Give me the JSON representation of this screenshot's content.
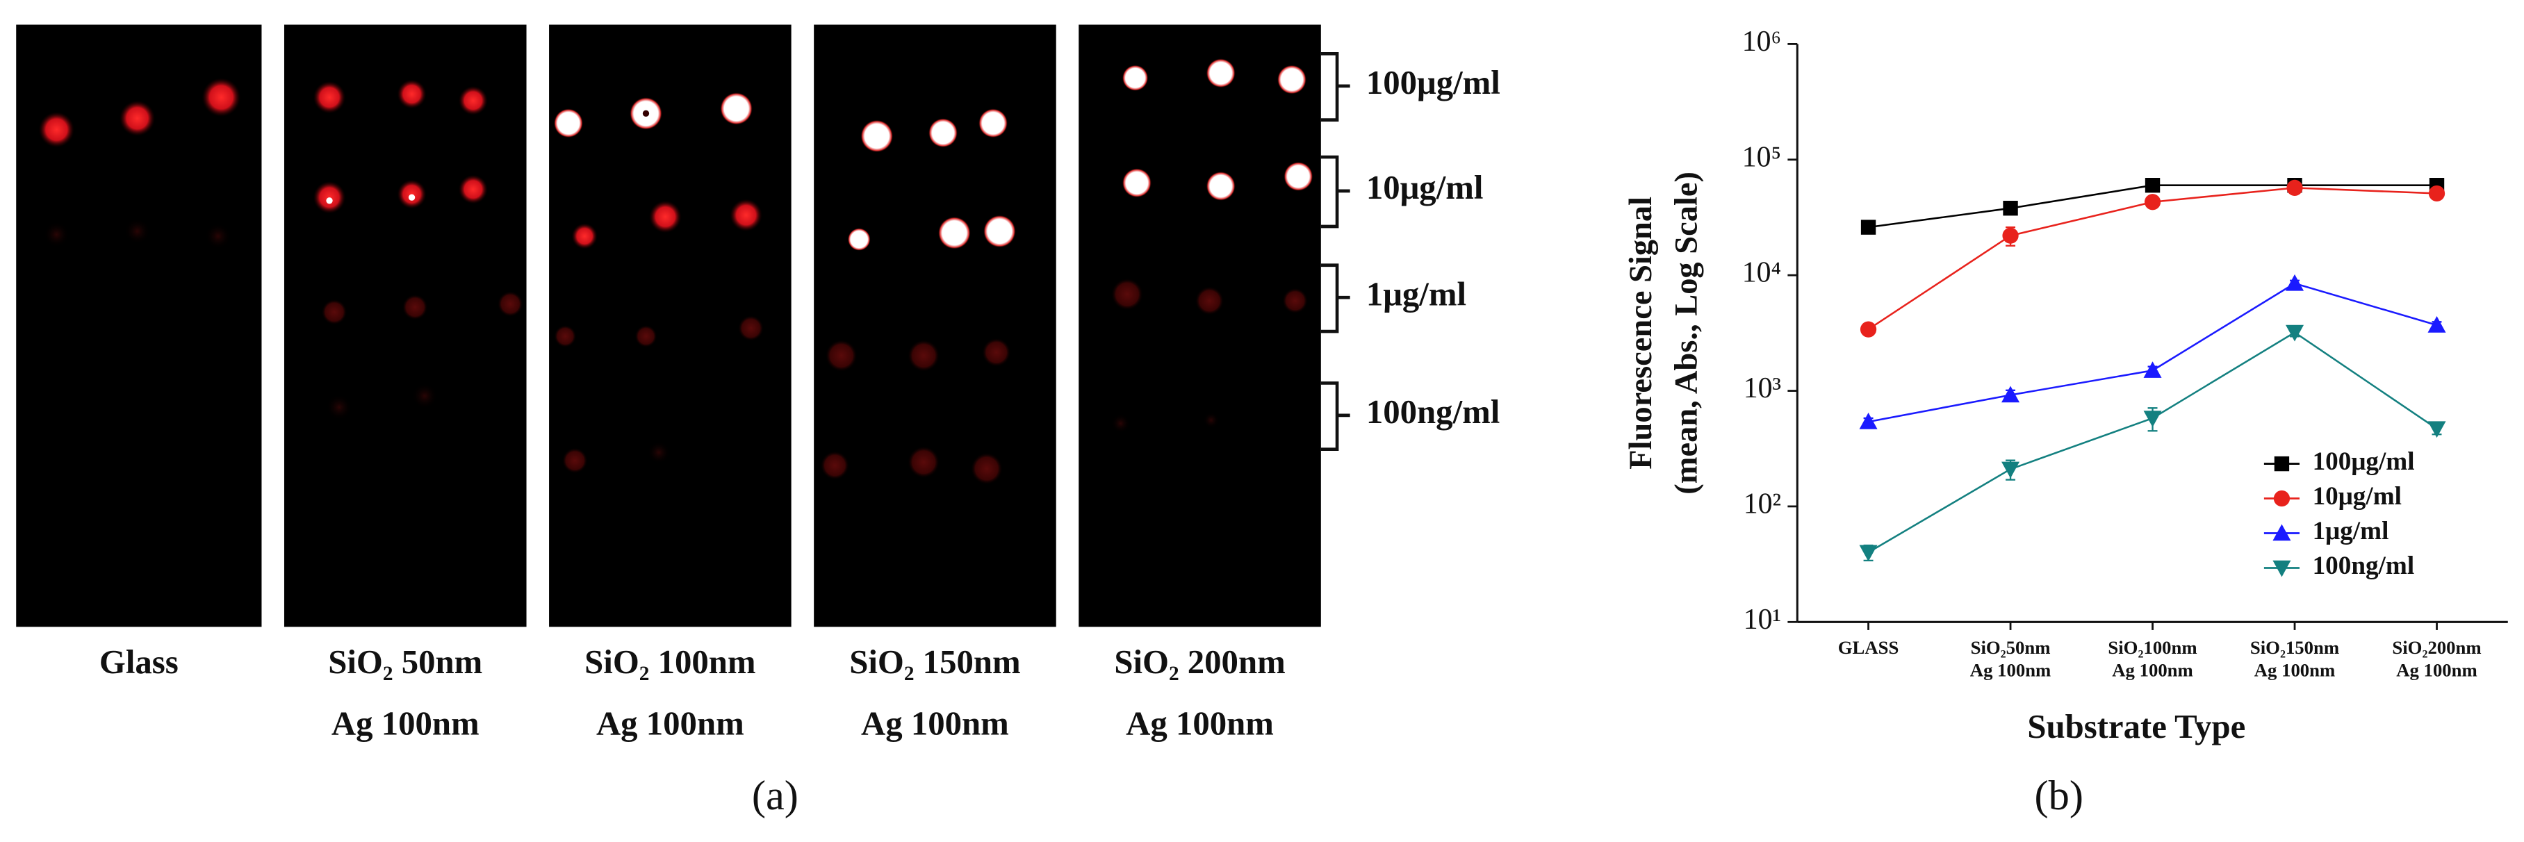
{
  "panel_a": {
    "label": "(a)",
    "substrates": [
      [
        "Glass"
      ],
      [
        "SiO₂ 50nm",
        "Ag 100nm"
      ],
      [
        "SiO₂ 100nm",
        "Ag 100nm"
      ],
      [
        "SiO₂ 150nm",
        "Ag 100nm"
      ],
      [
        "SiO₂ 200nm",
        "Ag 100nm"
      ]
    ],
    "concentrations": [
      "100μg/ml",
      "10μg/ml",
      "1μg/ml",
      "100ng/ml"
    ]
  },
  "chart_data": {
    "type": "line",
    "panel_label": "(b)",
    "xlabel": "Substrate Type",
    "ylabel": [
      "Fluorescence Signal",
      "(mean, Abs., Log Scale)"
    ],
    "categories": [
      [
        "GLASS"
      ],
      [
        "SiO₂50nm",
        "Ag 100nm"
      ],
      [
        "SiO₂100nm",
        "Ag 100nm"
      ],
      [
        "SiO₂150nm",
        "Ag 100nm"
      ],
      [
        "SiO₂200nm",
        "Ag 100nm"
      ]
    ],
    "log_y": true,
    "ylim": [
      10,
      1000000
    ],
    "yticks": [
      {
        "value": 10,
        "label": "10¹"
      },
      {
        "value": 100,
        "label": "10²"
      },
      {
        "value": 1000,
        "label": "10³"
      },
      {
        "value": 10000,
        "label": "10⁴"
      },
      {
        "value": 100000,
        "label": "10⁵"
      },
      {
        "value": 1000000,
        "label": "10⁶"
      }
    ],
    "legend": "lower right",
    "series": [
      {
        "name": "100μg/ml",
        "color": "#000000",
        "marker": "square",
        "values": [
          26000,
          38000,
          60000,
          60000,
          60000
        ],
        "errors": [
          1500,
          3000,
          3000,
          2500,
          2500
        ]
      },
      {
        "name": "10μg/ml",
        "color": "#e8221c",
        "marker": "circle",
        "values": [
          3400,
          22000,
          43000,
          57000,
          51000
        ],
        "errors": [
          200,
          4000,
          3000,
          3000,
          3000
        ]
      },
      {
        "name": "1μg/ml",
        "color": "#1a1aff",
        "marker": "triangle-up",
        "values": [
          540,
          920,
          1500,
          8500,
          3700
        ],
        "errors": [
          40,
          90,
          120,
          500,
          250
        ]
      },
      {
        "name": "100ng/ml",
        "color": "#138080",
        "marker": "triangle-down",
        "values": [
          40,
          210,
          580,
          3200,
          470
        ],
        "errors": [
          6,
          40,
          130,
          250,
          50
        ]
      }
    ]
  }
}
